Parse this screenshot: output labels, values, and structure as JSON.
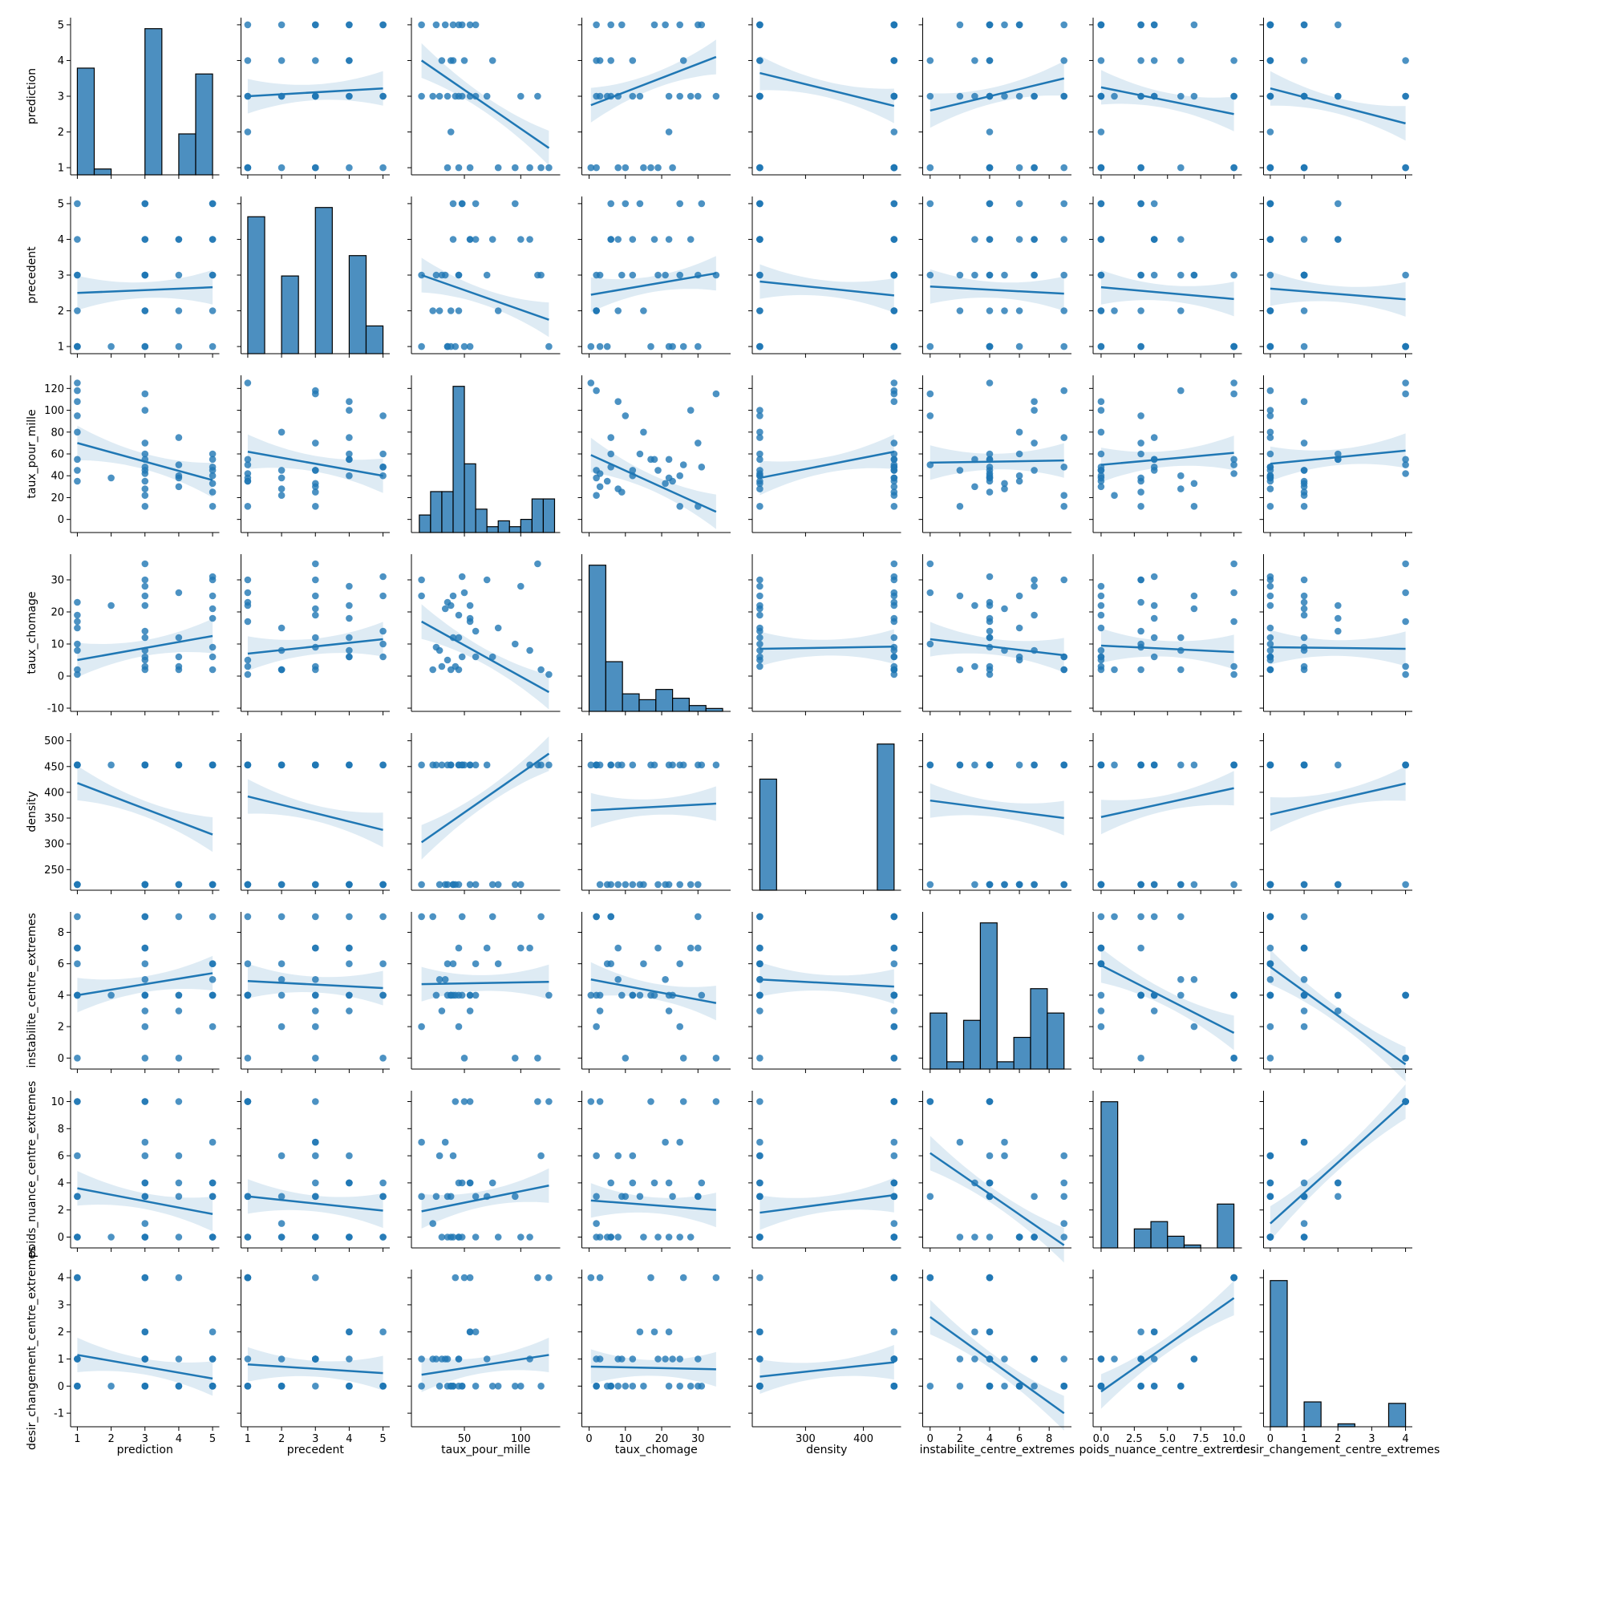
{
  "chart_data": {
    "type": "pairplot",
    "description_kind": "scatter matrix with linear regression fits (95% CI bands) off-diagonal and histograms on diagonal",
    "variables": [
      "prediction",
      "precedent",
      "taux_pour_mille",
      "taux_chomage",
      "density",
      "instabilite_centre_extremes",
      "poids_nuance_centre_extremes",
      "desir_changement_centre_extremes"
    ],
    "colors": {
      "marker": "#1f77b4",
      "line": "#1f77b4",
      "band": "#1f77b4",
      "hist_fill": "#4c8fc0"
    },
    "axes": {
      "prediction": {
        "range": [
          0.8,
          5.2
        ],
        "ticks": [
          1,
          2,
          3,
          4,
          5
        ],
        "tick_labels": [
          "1",
          "2",
          "3",
          "4",
          "5"
        ]
      },
      "precedent": {
        "range": [
          0.8,
          5.2
        ],
        "ticks": [
          1,
          2,
          3,
          4,
          5
        ],
        "tick_labels": [
          "1",
          "2",
          "3",
          "4",
          "5"
        ]
      },
      "taux_pour_mille": {
        "range": [
          3,
          135
        ],
        "ticks": [
          50,
          100
        ],
        "tick_labels": [
          "50",
          "100"
        ],
        "row_ticks": [
          0,
          20,
          40,
          60,
          80,
          100,
          120
        ],
        "row_range": [
          -12,
          132
        ]
      },
      "taux_chomage": {
        "range": [
          -2,
          39
        ],
        "ticks": [
          0,
          10,
          20,
          30
        ],
        "tick_labels": [
          "0",
          "10",
          "20",
          "30"
        ],
        "row_ticks": [
          -10,
          0,
          10,
          20,
          30
        ],
        "row_range": [
          -11,
          38
        ]
      },
      "density": {
        "range": [
          208,
          465
        ],
        "ticks": [
          300,
          400
        ],
        "tick_labels": [
          "300",
          "400"
        ],
        "row_ticks": [
          250,
          300,
          350,
          400,
          450,
          500
        ],
        "row_range": [
          210,
          515
        ]
      },
      "instabilite_centre_extremes": {
        "range": [
          -0.5,
          9.5
        ],
        "ticks": [
          0,
          2,
          4,
          6,
          8
        ],
        "tick_labels": [
          "0",
          "2",
          "4",
          "6",
          "8"
        ],
        "row_range": [
          -0.7,
          9.3
        ]
      },
      "poids_nuance_centre_extremes": {
        "range": [
          -0.6,
          10.6
        ],
        "ticks": [
          0,
          2.5,
          5,
          7.5,
          10
        ],
        "tick_labels": [
          "0.0",
          "2.5",
          "5.0",
          "7.5",
          "10.0"
        ],
        "row_ticks": [
          0,
          2,
          4,
          6,
          8,
          10
        ],
        "row_range": [
          -0.8,
          10.8
        ]
      },
      "desir_changement_centre_extremes": {
        "range": [
          -0.2,
          4.2
        ],
        "ticks": [
          0,
          1,
          2,
          3,
          4
        ],
        "tick_labels": [
          "0",
          "1",
          "2",
          "3",
          "4"
        ],
        "row_ticks": [
          -1,
          0,
          1,
          2,
          3,
          4
        ],
        "row_range": [
          -1.5,
          4.3
        ]
      }
    },
    "histograms": {
      "prediction": {
        "edges": [
          1,
          1.5,
          2,
          2.5,
          3,
          3.5,
          4,
          4.5,
          5
        ],
        "heights": [
          0.73,
          0.04,
          0,
          0,
          1.0,
          0,
          0.28,
          0.69
        ]
      },
      "precedent": {
        "edges": [
          1,
          1.5,
          2,
          2.5,
          3,
          3.5,
          4,
          4.5,
          5
        ],
        "heights": [
          0.74,
          0,
          0.42,
          0,
          0.79,
          0,
          0.53,
          0.15
        ]
      },
      "taux_pour_mille": {
        "edges": [
          10,
          20,
          30,
          40,
          50,
          60,
          70,
          80,
          90,
          100,
          110,
          120,
          130
        ],
        "heights": [
          0.12,
          0.28,
          0.28,
          1.0,
          0.47,
          0.16,
          0.04,
          0.08,
          0.04,
          0.09,
          0.23,
          0.23,
          0.09
        ]
      },
      "taux_chomage": {
        "edges": [
          0,
          4.6,
          9.2,
          13.8,
          18.4,
          23,
          27.6,
          32.2,
          36.8
        ],
        "heights": [
          1.0,
          0.34,
          0.12,
          0.08,
          0.15,
          0.09,
          0.04,
          0.02
        ]
      },
      "density": {
        "edges": [
          221,
          250,
          279,
          308,
          337,
          366,
          395,
          424,
          453
        ],
        "heights": [
          0.76,
          0,
          0,
          0,
          0,
          0,
          0,
          1.0
        ]
      },
      "instabilite_centre_extremes": {
        "edges": [
          0,
          1.125,
          2.25,
          3.375,
          4.5,
          5.625,
          6.75,
          7.875,
          9
        ],
        "heights": [
          0.23,
          0.03,
          0.2,
          0.6,
          0.03,
          0.13,
          0.33,
          0.23
        ]
      },
      "poids_nuance_centre_extremes": {
        "edges": [
          0,
          1.25,
          2.5,
          3.75,
          5,
          6.25,
          7.5,
          8.75,
          10
        ],
        "heights": [
          1.0,
          0,
          0.13,
          0.18,
          0.08,
          0.02,
          0,
          0.3
        ]
      },
      "desir_changement_centre_extremes": {
        "edges": [
          0,
          0.5,
          1,
          1.5,
          2,
          2.5,
          3,
          3.5,
          4
        ],
        "heights": [
          1.0,
          0,
          0.17,
          0,
          0.02,
          0,
          0,
          0.16
        ]
      }
    },
    "points": {
      "prediction": [
        1,
        1,
        1,
        1,
        1,
        1,
        1,
        1,
        2,
        3,
        3,
        3,
        3,
        3,
        3,
        3,
        3,
        3,
        3,
        3,
        3,
        4,
        4,
        4,
        4,
        4,
        5,
        5,
        5,
        5,
        5,
        5,
        5,
        5
      ],
      "precedent": [
        1,
        3,
        4,
        5,
        2,
        1,
        3,
        1,
        1,
        3,
        4,
        5,
        1,
        2,
        3,
        3,
        4,
        1,
        2,
        3,
        5,
        1,
        4,
        3,
        4,
        2,
        5,
        3,
        4,
        1,
        2,
        3,
        4,
        5
      ],
      "taux_pour_mille": [
        125,
        118,
        108,
        95,
        80,
        55,
        45,
        35,
        38,
        70,
        55,
        48,
        42,
        28,
        12,
        115,
        100,
        35,
        22,
        45,
        60,
        50,
        40,
        30,
        75,
        38,
        40,
        25,
        55,
        12,
        45,
        33,
        60,
        48
      ],
      "taux_chomage": [
        0.5,
        2,
        8,
        10,
        15,
        17,
        19,
        23,
        22,
        30,
        22,
        6,
        3,
        8,
        25,
        35,
        28,
        5,
        2,
        12,
        14,
        26,
        12,
        3,
        6,
        2,
        25,
        9,
        18,
        30,
        2,
        21,
        6,
        31
      ],
      "density": [
        453,
        453,
        453,
        221,
        221,
        453,
        221,
        453,
        453,
        453,
        221,
        453,
        221,
        221,
        453,
        453,
        221,
        221,
        453,
        453,
        221,
        453,
        221,
        453,
        221,
        453,
        221,
        453,
        453,
        221,
        453,
        221,
        453,
        453
      ],
      "instabilite_centre_extremes": [
        4,
        9,
        7,
        0,
        6,
        4,
        7,
        4,
        4,
        7,
        3,
        9,
        4,
        5,
        2,
        0,
        7,
        6,
        9,
        4,
        4,
        0,
        4,
        3,
        9,
        4,
        6,
        4,
        4,
        9,
        2,
        5,
        6,
        4
      ],
      "poids_nuance_centre_extremes": [
        10,
        6,
        0,
        3,
        0,
        10,
        0,
        3,
        0,
        3,
        4,
        0,
        10,
        6,
        7,
        10,
        0,
        0,
        1,
        4,
        3,
        10,
        6,
        0,
        4,
        3,
        0,
        3,
        4,
        3,
        0,
        7,
        0,
        4
      ],
      "desir_changement_centre_extremes": [
        4,
        0,
        1,
        0,
        0,
        4,
        1,
        1,
        0,
        1,
        2,
        0,
        4,
        0,
        1,
        4,
        0,
        0,
        1,
        1,
        2,
        4,
        0,
        1,
        0,
        0,
        0,
        1,
        2,
        0,
        0,
        1,
        0,
        0
      ]
    },
    "regression": {
      "1,0": [
        3.0,
        3.22
      ],
      "2,0": [
        4.0,
        1.55
      ],
      "3,0": [
        2.75,
        4.1
      ],
      "4,0": [
        3.65,
        2.73
      ],
      "5,0": [
        2.6,
        3.5
      ],
      "6,0": [
        3.25,
        2.5
      ],
      "7,0": [
        3.22,
        2.24
      ],
      "0,1": [
        2.5,
        2.66
      ],
      "2,1": [
        3.0,
        1.75
      ],
      "3,1": [
        2.45,
        3.05
      ],
      "4,1": [
        2.82,
        2.43
      ],
      "5,1": [
        2.68,
        2.48
      ],
      "6,1": [
        2.66,
        2.33
      ],
      "7,1": [
        2.62,
        2.32
      ],
      "0,2": [
        70,
        36
      ],
      "1,2": [
        62,
        40
      ],
      "3,2": [
        59,
        7
      ],
      "4,2": [
        38,
        62
      ],
      "5,2": [
        52,
        54
      ],
      "6,2": [
        50,
        61
      ],
      "7,2": [
        51,
        63
      ],
      "0,3": [
        5,
        12.5
      ],
      "1,3": [
        7,
        11.5
      ],
      "2,3": [
        17,
        -5
      ],
      "4,3": [
        8.5,
        9.2
      ],
      "5,3": [
        11.5,
        6.5
      ],
      "6,3": [
        9.5,
        7.5
      ],
      "7,3": [
        9,
        8.5
      ],
      "0,4": [
        418,
        318
      ],
      "1,4": [
        392,
        327
      ],
      "2,4": [
        303,
        475
      ],
      "3,4": [
        365,
        378
      ],
      "5,4": [
        384,
        350
      ],
      "6,4": [
        352,
        408
      ],
      "7,4": [
        357,
        417
      ],
      "0,5": [
        4.0,
        5.4
      ],
      "1,5": [
        4.9,
        4.45
      ],
      "2,5": [
        4.7,
        4.85
      ],
      "3,5": [
        5.0,
        3.5
      ],
      "4,5": [
        5.0,
        4.55
      ],
      "6,5": [
        5.9,
        1.6
      ],
      "7,5": [
        5.8,
        -0.4
      ],
      "0,6": [
        3.6,
        1.7
      ],
      "1,6": [
        3.0,
        1.95
      ],
      "2,6": [
        1.9,
        3.8
      ],
      "3,6": [
        2.7,
        2.0
      ],
      "4,6": [
        1.8,
        3.1
      ],
      "5,6": [
        6.2,
        -0.6
      ],
      "7,6": [
        1.0,
        10.0
      ],
      "0,7": [
        1.15,
        0.28
      ],
      "1,7": [
        0.8,
        0.48
      ],
      "2,7": [
        0.42,
        1.15
      ],
      "3,7": [
        0.72,
        0.62
      ],
      "4,7": [
        0.35,
        0.88
      ],
      "5,7": [
        2.55,
        -1.0
      ],
      "6,7": [
        -0.2,
        3.25
      ]
    }
  }
}
